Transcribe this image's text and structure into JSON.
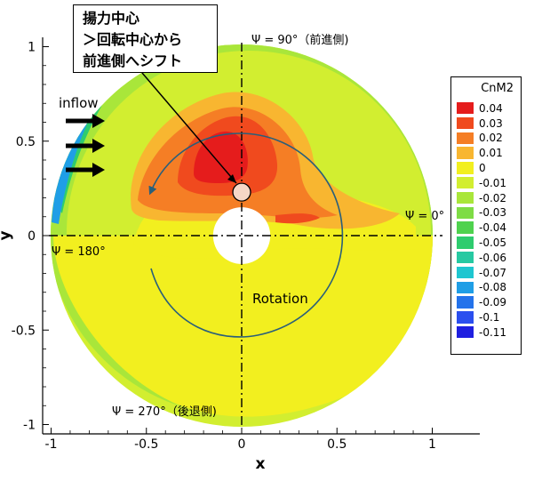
{
  "callout": {
    "lines": [
      "揚力中心",
      "＞回転中心から",
      "前進側へシフト"
    ]
  },
  "labels": {
    "inflow": "inflow",
    "psi90": "Ψ = 90°（前進側)",
    "psi0": "Ψ = 0°",
    "psi180": "Ψ = 180°",
    "psi270": "Ψ = 270°（後退側)",
    "rotation": "Rotation"
  },
  "chart_data": {
    "type": "heatmap",
    "title": "",
    "xlabel": "x",
    "ylabel": "y",
    "xlim": [
      -1,
      1
    ],
    "ylim": [
      -1,
      1
    ],
    "xticks": [
      "-1",
      "-0.5",
      "0",
      "0.5",
      "1"
    ],
    "yticks": [
      "-1",
      "-0.5",
      "0",
      "0.5",
      "1"
    ],
    "colorbar": {
      "title": "CnM2",
      "levels": [
        "0.04",
        "0.03",
        "0.02",
        "0.01",
        "0",
        "-0.01",
        "-0.02",
        "-0.03",
        "-0.04",
        "-0.05",
        "-0.06",
        "-0.07",
        "-0.08",
        "-0.09",
        "-0.1",
        "-0.11"
      ],
      "colors": [
        "#e51c1c",
        "#f04a1e",
        "#f57e25",
        "#f8b630",
        "#f2ef1f",
        "#d2ee30",
        "#a9e63a",
        "#7edc45",
        "#4fd24e",
        "#2ecc6e",
        "#26c9a2",
        "#1ec6d0",
        "#1f9ee6",
        "#2473eb",
        "#2b4fef",
        "#1f1fe0"
      ]
    },
    "lift_center": {
      "x": 0.0,
      "y": 0.23
    },
    "hub_radius": 0.15
  },
  "colors": {
    "axes": "#000000",
    "rotation_arrow": "#2a5f7a",
    "arrow": "#000000"
  }
}
